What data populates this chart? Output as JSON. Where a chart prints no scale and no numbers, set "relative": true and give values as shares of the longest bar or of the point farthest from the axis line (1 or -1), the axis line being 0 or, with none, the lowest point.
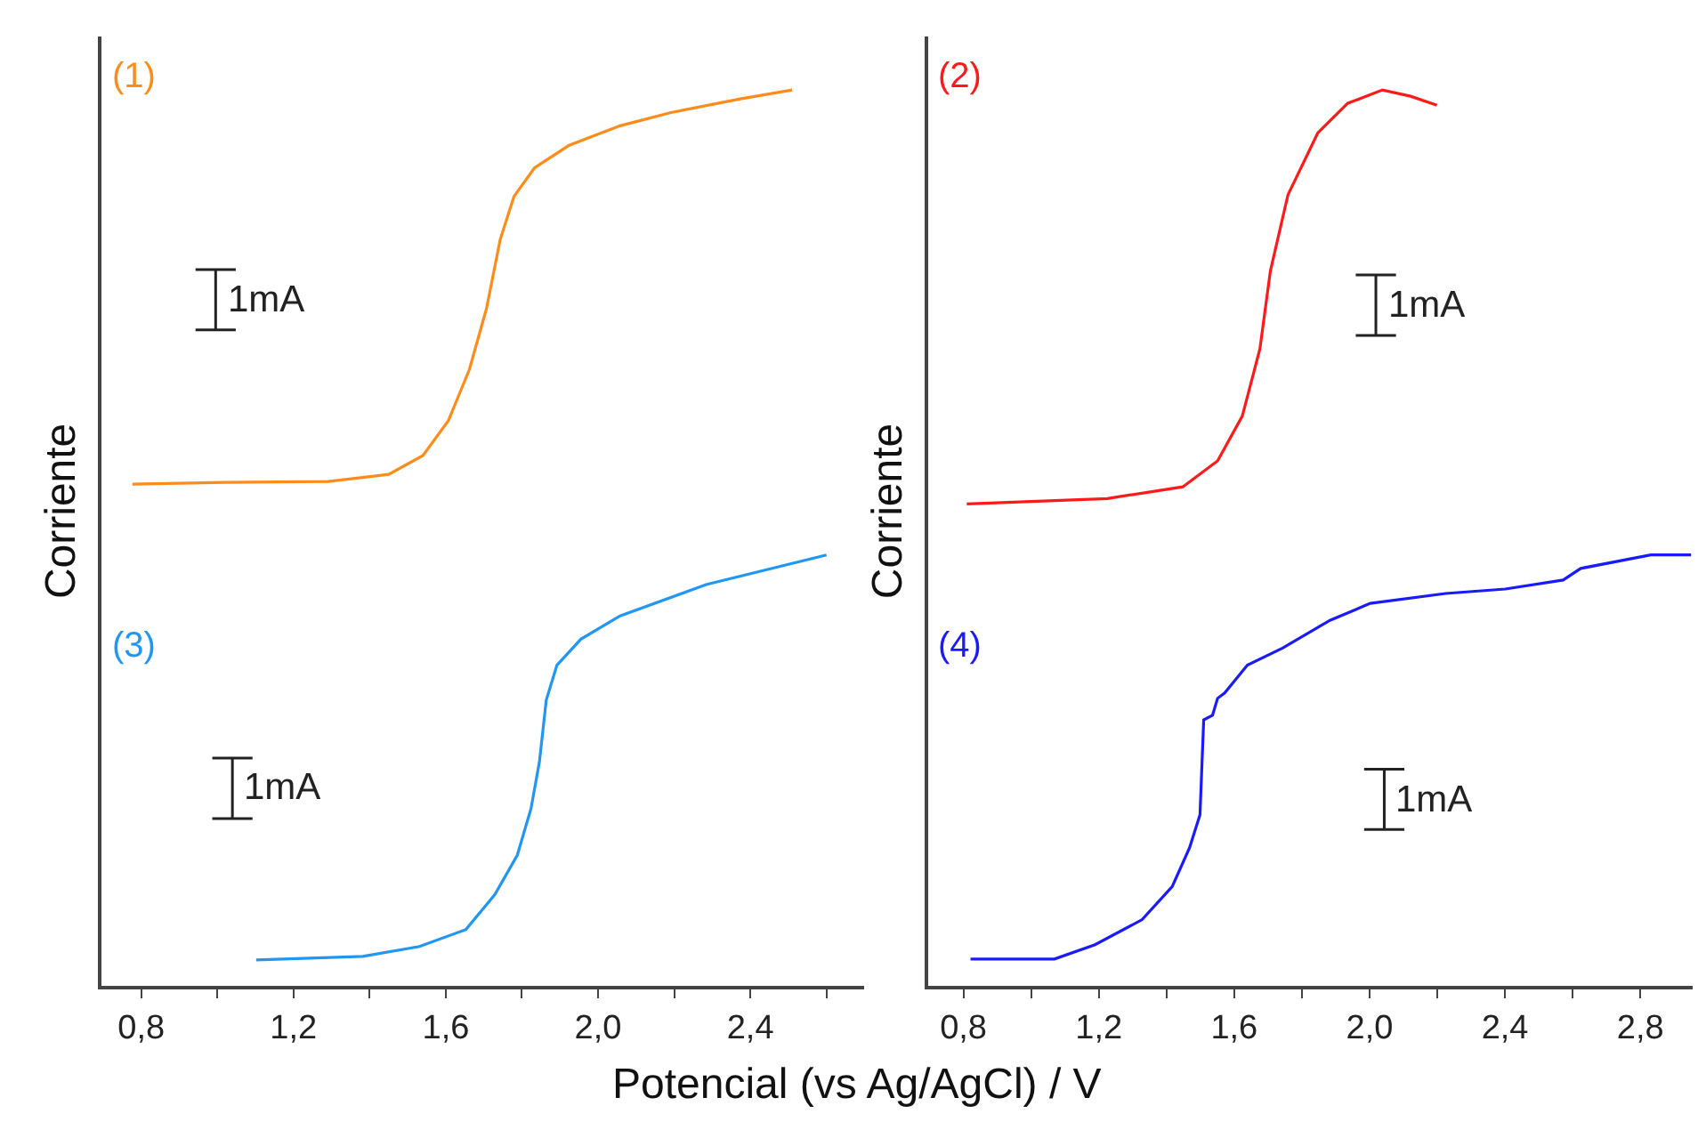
{
  "chart_data": [
    {
      "type": "line",
      "relative": true,
      "xlabel": "Potencial (vs Ag/AgCl) / V",
      "ylabel": "Corriente",
      "xlim": [
        0.696,
        2.7
      ],
      "xticks": [
        {
          "value": 0.8,
          "label": "0,8"
        },
        {
          "value": 1.0,
          "label": null
        },
        {
          "value": 1.2,
          "label": "1,2"
        },
        {
          "value": 1.4,
          "label": null
        },
        {
          "value": 1.6,
          "label": "1,6"
        },
        {
          "value": 1.8,
          "label": null
        },
        {
          "value": 2.0,
          "label": "2,0"
        },
        {
          "value": 2.2,
          "label": null
        },
        {
          "value": 2.4,
          "label": "2,4"
        },
        {
          "value": 2.6,
          "label": null
        }
      ],
      "legend": false,
      "marker": "none",
      "line_style": "solid",
      "tick_labels": "x",
      "annotations": [
        "1mA",
        "1mA"
      ],
      "series": [
        {
          "name": "(1)",
          "color": "#ff8c1a",
          "x": [
            0.777,
            1.021,
            1.292,
            1.45,
            1.54,
            1.607,
            1.662,
            1.707,
            1.743,
            1.779,
            1.833,
            1.923,
            2.058,
            2.194,
            2.374,
            2.51
          ],
          "values": [
            0.56,
            0.562,
            0.563,
            0.571,
            0.592,
            0.631,
            0.688,
            0.756,
            0.833,
            0.881,
            0.913,
            0.938,
            0.96,
            0.975,
            0.99,
            1.0
          ]
        },
        {
          "name": "(3)",
          "color": "#2196f3",
          "x": [
            1.102,
            1.382,
            1.531,
            1.653,
            1.729,
            1.788,
            1.824,
            1.846,
            1.864,
            1.892,
            1.955,
            2.058,
            2.284,
            2.6
          ],
          "values": [
            0.029,
            0.033,
            0.044,
            0.063,
            0.102,
            0.146,
            0.198,
            0.25,
            0.319,
            0.358,
            0.387,
            0.413,
            0.448,
            0.481
          ]
        }
      ]
    },
    {
      "type": "line",
      "relative": true,
      "ylabel": "Corriente",
      "xlim": [
        0.696,
        2.955
      ],
      "xticks": [
        {
          "value": 0.8,
          "label": "0,8"
        },
        {
          "value": 1.0,
          "label": null
        },
        {
          "value": 1.2,
          "label": "1,2"
        },
        {
          "value": 1.4,
          "label": null
        },
        {
          "value": 1.6,
          "label": "1,6"
        },
        {
          "value": 1.8,
          "label": null
        },
        {
          "value": 2.0,
          "label": "2,0"
        },
        {
          "value": 2.2,
          "label": null
        },
        {
          "value": 2.4,
          "label": "2,4"
        },
        {
          "value": 2.6,
          "label": null
        },
        {
          "value": 2.8,
          "label": "2,8"
        }
      ],
      "legend": false,
      "marker": "none",
      "line_style": "solid",
      "tick_labels": "x",
      "annotations": [
        "1mA",
        "1mA"
      ],
      "series": [
        {
          "name": "(2)",
          "color": "#ff1a1a",
          "x": [
            0.81,
            1.225,
            1.448,
            1.551,
            1.624,
            1.676,
            1.707,
            1.759,
            1.847,
            1.935,
            2.038,
            2.121,
            2.199
          ],
          "values": [
            0.538,
            0.544,
            0.557,
            0.586,
            0.636,
            0.711,
            0.798,
            0.883,
            0.952,
            0.985,
            1.0,
            0.993,
            0.983
          ]
        },
        {
          "name": "(4)",
          "color": "#1a1aff",
          "x": [
            0.821,
            1.069,
            1.189,
            1.328,
            1.417,
            1.468,
            1.499,
            1.51,
            1.536,
            1.551,
            1.572,
            1.639,
            1.743,
            1.883,
            2.002,
            2.225,
            2.401,
            2.572,
            2.624,
            2.831,
            2.95
          ],
          "values": [
            0.03,
            0.03,
            0.046,
            0.074,
            0.111,
            0.154,
            0.191,
            0.297,
            0.302,
            0.321,
            0.327,
            0.358,
            0.377,
            0.408,
            0.427,
            0.438,
            0.443,
            0.453,
            0.466,
            0.481,
            0.481
          ]
        }
      ]
    }
  ]
}
